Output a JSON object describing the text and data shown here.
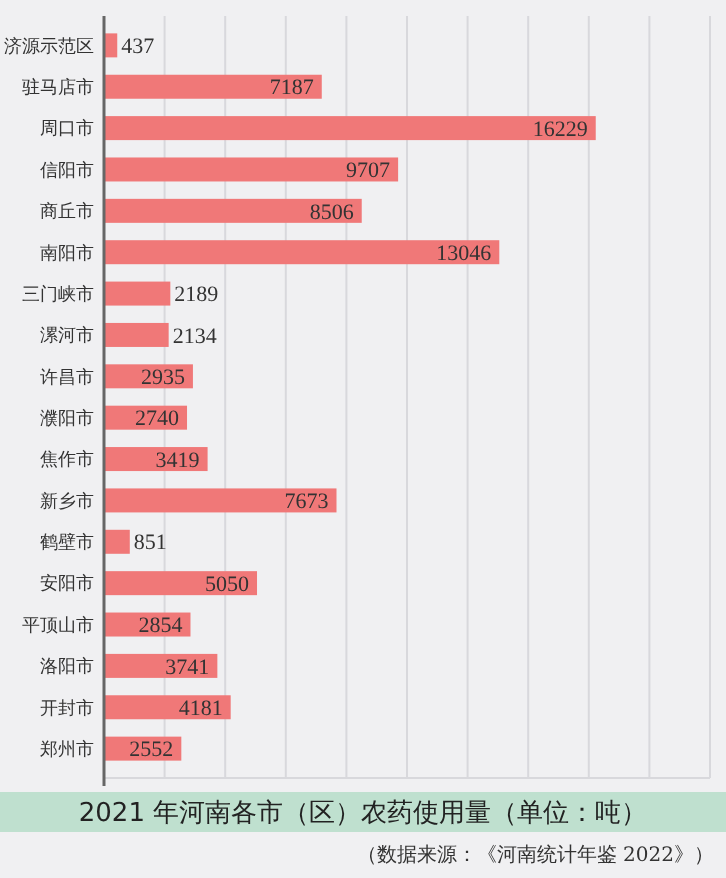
{
  "chart_data": {
    "type": "bar",
    "orientation": "horizontal",
    "title": "2021 年河南各市（区）农药使用量（单位：吨）",
    "annotations": [
      "（数据来源：《河南统计年鉴 2022》）"
    ],
    "categories": [
      "济源示范区",
      "驻马店市",
      "周口市",
      "信阳市",
      "商丘市",
      "南阳市",
      "三门峡市",
      "漯河市",
      "许昌市",
      "濮阳市",
      "焦作市",
      "新乡市",
      "鹤壁市",
      "安阳市",
      "平顶山市",
      "洛阳市",
      "开封市",
      "郑州市"
    ],
    "values": [
      437,
      7187,
      16229,
      9707,
      8506,
      13046,
      2189,
      2134,
      2935,
      2740,
      3419,
      7673,
      851,
      5050,
      2854,
      3741,
      4181,
      2552
    ],
    "color": "#f07878",
    "data_labels": true,
    "grid": "x",
    "tick_labels": "y",
    "xlim": [
      0,
      20000
    ],
    "xticks": [
      {
        "value": 0,
        "label": null
      },
      {
        "value": 2000,
        "label": null
      },
      {
        "value": 4000,
        "label": null
      },
      {
        "value": 6000,
        "label": null
      },
      {
        "value": 8000,
        "label": null
      },
      {
        "value": 10000,
        "label": null
      },
      {
        "value": 12000,
        "label": null
      },
      {
        "value": 14000,
        "label": null
      },
      {
        "value": 16000,
        "label": null
      },
      {
        "value": 18000,
        "label": null
      },
      {
        "value": 20000,
        "label": null
      }
    ]
  }
}
